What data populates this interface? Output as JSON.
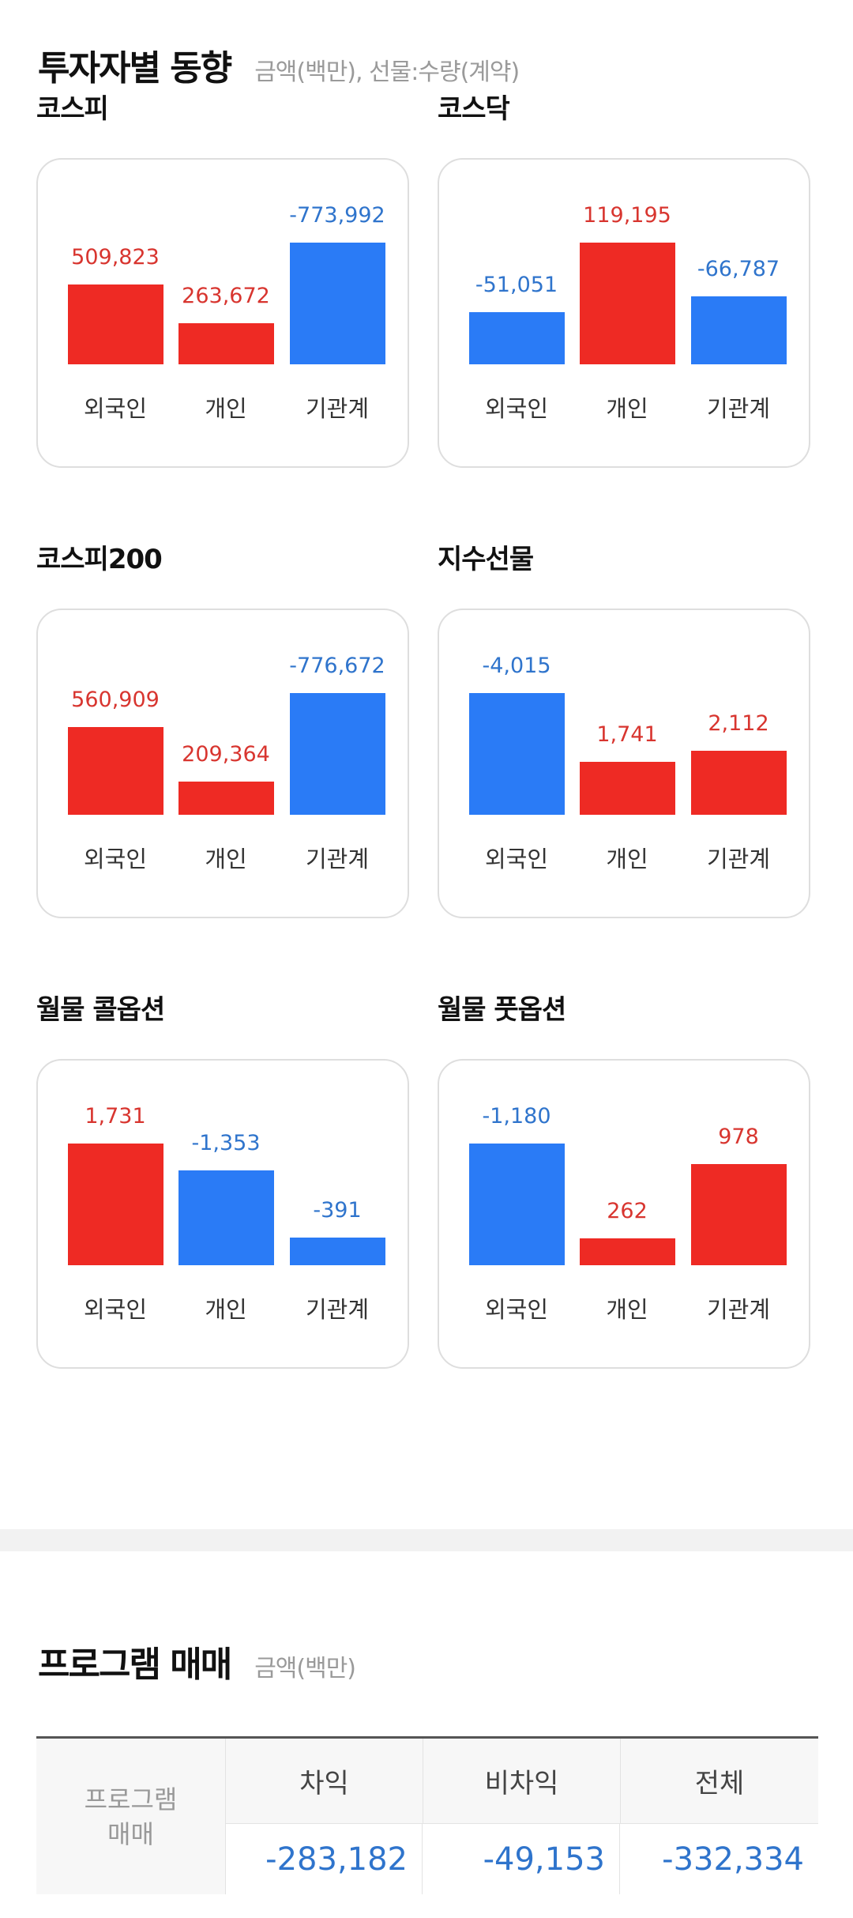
{
  "investor": {
    "title": "투자자별 동향",
    "subtitle": "금액(백만), 선물:수량(계약)",
    "color_positive": "#ee2a24",
    "color_negative": "#2a7bf6",
    "cards": [
      {
        "title": "코스피",
        "values": [
          "509,823",
          "263,672",
          "-773,992"
        ],
        "labels": [
          "외국인",
          "개인",
          "기관계"
        ]
      },
      {
        "title": "코스닥",
        "values": [
          "-51,051",
          "119,195",
          "-66,787"
        ],
        "labels": [
          "외국인",
          "개인",
          "기관계"
        ]
      },
      {
        "title": "코스피200",
        "values": [
          "560,909",
          "209,364",
          "-776,672"
        ],
        "labels": [
          "외국인",
          "개인",
          "기관계"
        ]
      },
      {
        "title": "지수선물",
        "values": [
          "-4,015",
          "1,741",
          "2,112"
        ],
        "labels": [
          "외국인",
          "개인",
          "기관계"
        ]
      },
      {
        "title": "월물 콜옵션",
        "values": [
          "1,731",
          "-1,353",
          "-391"
        ],
        "labels": [
          "외국인",
          "개인",
          "기관계"
        ]
      },
      {
        "title": "월물 풋옵션",
        "values": [
          "-1,180",
          "262",
          "978"
        ],
        "labels": [
          "외국인",
          "개인",
          "기관계"
        ]
      }
    ]
  },
  "program": {
    "title": "프로그램 매매",
    "subtitle": "금액(백만)",
    "row_label": "프로그램\n매매",
    "columns": [
      "차익",
      "비차익",
      "전체"
    ],
    "values": [
      "-283,182",
      "-49,153",
      "-332,334"
    ]
  }
}
